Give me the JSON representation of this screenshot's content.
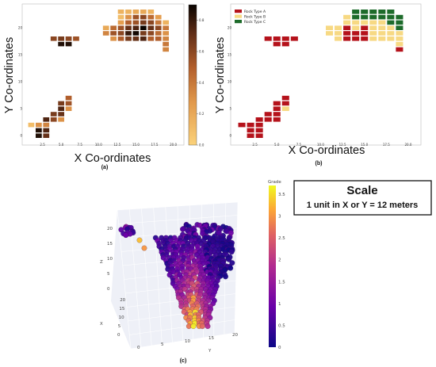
{
  "chart_data": [
    {
      "type": "heatmap",
      "panel_label": "(a)",
      "xlabel": "X Co-ordinates",
      "ylabel": "Y Co-ordinates",
      "xticks": [
        "2.5",
        "5.0",
        "7.5",
        "10.0",
        "12.5",
        "15.0",
        "17.5",
        "20.0"
      ],
      "yticks": [
        "0",
        "5",
        "10",
        "15",
        "20"
      ],
      "xlim": [
        0,
        21
      ],
      "ylim": [
        -1,
        24
      ],
      "colorbar": {
        "ticks": [
          "0.0",
          "0.2",
          "0.4",
          "0.6",
          "0.8"
        ],
        "range": [
          0,
          0.9
        ]
      },
      "cells": [
        [
          13,
          23,
          0.15
        ],
        [
          14,
          23,
          0.15
        ],
        [
          15,
          23,
          0.2
        ],
        [
          16,
          23,
          0.2
        ],
        [
          17,
          23,
          0.15
        ],
        [
          13,
          22,
          0.1
        ],
        [
          14,
          22,
          0.3
        ],
        [
          15,
          22,
          0.55
        ],
        [
          16,
          22,
          0.6
        ],
        [
          17,
          22,
          0.45
        ],
        [
          18,
          22,
          0.25
        ],
        [
          13,
          21,
          0.25
        ],
        [
          14,
          21,
          0.5
        ],
        [
          15,
          21,
          0.55
        ],
        [
          16,
          21,
          0.65
        ],
        [
          17,
          21,
          0.6
        ],
        [
          18,
          21,
          0.4
        ],
        [
          19,
          21,
          0.15
        ],
        [
          11,
          20,
          0.2
        ],
        [
          12,
          20,
          0.45
        ],
        [
          13,
          20,
          0.55
        ],
        [
          14,
          20,
          0.7
        ],
        [
          15,
          20,
          0.75
        ],
        [
          16,
          20,
          0.9
        ],
        [
          17,
          20,
          0.7
        ],
        [
          18,
          20,
          0.6
        ],
        [
          19,
          20,
          0.4
        ],
        [
          11,
          19,
          0.35
        ],
        [
          12,
          19,
          0.55
        ],
        [
          13,
          19,
          0.6
        ],
        [
          14,
          19,
          0.8
        ],
        [
          15,
          19,
          0.88
        ],
        [
          16,
          19,
          0.65
        ],
        [
          17,
          19,
          0.6
        ],
        [
          18,
          19,
          0.45
        ],
        [
          19,
          19,
          0.3
        ],
        [
          12,
          18,
          0.3
        ],
        [
          13,
          18,
          0.5
        ],
        [
          14,
          18,
          0.65
        ],
        [
          15,
          18,
          0.7
        ],
        [
          16,
          18,
          0.75
        ],
        [
          17,
          18,
          0.5
        ],
        [
          18,
          18,
          0.5
        ],
        [
          19,
          18,
          0.35
        ],
        [
          19,
          17,
          0.4
        ],
        [
          19,
          16,
          0.35
        ],
        [
          4,
          18,
          0.6
        ],
        [
          5,
          18,
          0.65
        ],
        [
          6,
          18,
          0.6
        ],
        [
          7,
          18,
          0.55
        ],
        [
          5,
          17,
          0.85
        ],
        [
          6,
          17,
          0.85
        ],
        [
          6,
          7,
          0.5
        ],
        [
          5,
          6,
          0.65
        ],
        [
          6,
          6,
          0.55
        ],
        [
          5,
          5,
          0.75
        ],
        [
          6,
          5,
          0.3
        ],
        [
          4,
          4,
          0.65
        ],
        [
          5,
          4,
          0.7
        ],
        [
          3,
          3,
          0.75
        ],
        [
          4,
          3,
          0.6
        ],
        [
          5,
          3,
          0.3
        ],
        [
          1,
          2,
          0.1
        ],
        [
          2,
          2,
          0.3
        ],
        [
          3,
          2,
          0.35
        ],
        [
          2,
          1,
          0.85
        ],
        [
          3,
          1,
          0.75
        ],
        [
          2,
          0,
          0.85
        ],
        [
          3,
          0,
          0.7
        ]
      ]
    },
    {
      "type": "heatmap",
      "panel_label": "(b)",
      "xlabel": "X Co-ordinates",
      "ylabel": "Y Co-ordinates",
      "xticks": [
        "2.5",
        "5.0",
        "7.5",
        "10.0",
        "12.5",
        "15.0",
        "17.5",
        "20.0"
      ],
      "yticks": [
        "0",
        "5",
        "10",
        "15",
        "20"
      ],
      "xlim": [
        0,
        21
      ],
      "ylim": [
        -1,
        24
      ],
      "series": [
        {
          "name": "Rock Type A",
          "color": "#b5121b"
        },
        {
          "name": "Rock Type B",
          "color": "#f7d983"
        },
        {
          "name": "Rock Type C",
          "color": "#1d6b2a"
        }
      ],
      "cells": [
        [
          14,
          23,
          "C"
        ],
        [
          15,
          23,
          "C"
        ],
        [
          16,
          23,
          "C"
        ],
        [
          17,
          23,
          "C"
        ],
        [
          18,
          23,
          "C"
        ],
        [
          13,
          22,
          "B"
        ],
        [
          14,
          22,
          "C"
        ],
        [
          15,
          22,
          "C"
        ],
        [
          16,
          22,
          "C"
        ],
        [
          17,
          22,
          "C"
        ],
        [
          18,
          22,
          "C"
        ],
        [
          19,
          22,
          "C"
        ],
        [
          13,
          21,
          "B"
        ],
        [
          14,
          21,
          "B"
        ],
        [
          15,
          21,
          "B"
        ],
        [
          16,
          21,
          "B"
        ],
        [
          17,
          21,
          "B"
        ],
        [
          18,
          21,
          "C"
        ],
        [
          19,
          21,
          "C"
        ],
        [
          11,
          20,
          "B"
        ],
        [
          12,
          20,
          "B"
        ],
        [
          13,
          20,
          "A"
        ],
        [
          14,
          20,
          "B"
        ],
        [
          15,
          20,
          "A"
        ],
        [
          16,
          20,
          "B"
        ],
        [
          17,
          20,
          "B"
        ],
        [
          18,
          20,
          "B"
        ],
        [
          19,
          20,
          "C"
        ],
        [
          11,
          19,
          "B"
        ],
        [
          12,
          19,
          "B"
        ],
        [
          13,
          19,
          "A"
        ],
        [
          14,
          19,
          "A"
        ],
        [
          15,
          19,
          "A"
        ],
        [
          16,
          19,
          "B"
        ],
        [
          17,
          19,
          "B"
        ],
        [
          18,
          19,
          "B"
        ],
        [
          19,
          19,
          "B"
        ],
        [
          12,
          18,
          "B"
        ],
        [
          13,
          18,
          "A"
        ],
        [
          14,
          18,
          "A"
        ],
        [
          15,
          18,
          "A"
        ],
        [
          16,
          18,
          "B"
        ],
        [
          17,
          18,
          "B"
        ],
        [
          18,
          18,
          "B"
        ],
        [
          19,
          18,
          "B"
        ],
        [
          19,
          17,
          "B"
        ],
        [
          19,
          16,
          "A"
        ],
        [
          4,
          18,
          "A"
        ],
        [
          5,
          18,
          "A"
        ],
        [
          6,
          18,
          "A"
        ],
        [
          7,
          18,
          "A"
        ],
        [
          5,
          17,
          "A"
        ],
        [
          6,
          17,
          "A"
        ],
        [
          6,
          7,
          "A"
        ],
        [
          5,
          6,
          "A"
        ],
        [
          6,
          6,
          "A"
        ],
        [
          5,
          5,
          "A"
        ],
        [
          6,
          5,
          "B"
        ],
        [
          4,
          4,
          "A"
        ],
        [
          5,
          4,
          "A"
        ],
        [
          3,
          3,
          "A"
        ],
        [
          4,
          3,
          "A"
        ],
        [
          5,
          3,
          "A"
        ],
        [
          1,
          2,
          "A"
        ],
        [
          2,
          2,
          "A"
        ],
        [
          3,
          2,
          "A"
        ],
        [
          2,
          1,
          "A"
        ],
        [
          3,
          1,
          "A"
        ],
        [
          2,
          0,
          "A"
        ],
        [
          3,
          0,
          "A"
        ]
      ]
    },
    {
      "type": "scatter",
      "panel_label": "(c)",
      "colorbar_title": "Grade",
      "colorbar_ticks": [
        "0",
        "0.5",
        "1",
        "1.5",
        "2",
        "2.5",
        "3",
        "3.5"
      ],
      "colorbar_range": [
        0,
        3.7
      ],
      "axis_labels": {
        "z": "Z",
        "x": "X",
        "y": "Y"
      },
      "z_ticks": [
        "20",
        "15",
        "10",
        "5",
        "0"
      ],
      "x_ticks": [
        "0",
        "5",
        "10",
        "15",
        "20"
      ],
      "y_ticks": [
        "0",
        "5",
        "10",
        "15",
        "20"
      ]
    }
  ],
  "scale_box": {
    "title": "Scale",
    "text": "1 unit in X or Y = 12 meters"
  }
}
